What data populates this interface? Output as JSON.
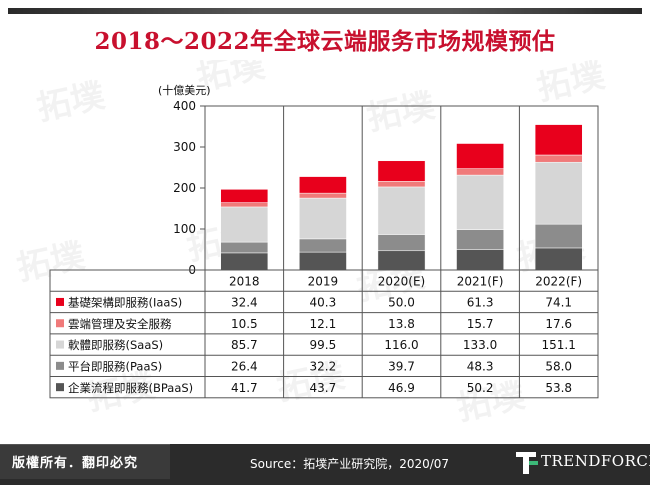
{
  "title": "2018～2022年全球云端服务市场规模预估",
  "footer": {
    "rights": "版權所有．翻印必究",
    "source": "Source：拓墣产业研究院，2020/07",
    "logo_text": "TRENDFORCE"
  },
  "watermark_text": "拓墣",
  "chart_data": {
    "type": "bar",
    "stacked": true,
    "unit_label": "(十億美元)",
    "ylim": [
      0,
      400
    ],
    "yticks": [
      0,
      100,
      200,
      300,
      400
    ],
    "categories": [
      "2018",
      "2019",
      "2020(E)",
      "2021(F)",
      "2022(F)"
    ],
    "series": [
      {
        "name": "基礎架構即服務(IaaS)",
        "color": "#e8001c",
        "values": [
          32.4,
          40.3,
          50.0,
          61.3,
          74.1
        ]
      },
      {
        "name": "雲端管理及安全服務",
        "color": "#f07a7a",
        "values": [
          10.5,
          12.1,
          13.8,
          15.7,
          17.6
        ]
      },
      {
        "name": "軟體即服務(SaaS)",
        "color": "#d6d6d6",
        "values": [
          85.7,
          99.5,
          116.0,
          133.0,
          151.1
        ]
      },
      {
        "name": "平台即服務(PaaS)",
        "color": "#8c8c8c",
        "values": [
          26.4,
          32.2,
          39.7,
          48.3,
          58.0
        ]
      },
      {
        "name": "企業流程即服務(BPaaS)",
        "color": "#555555",
        "values": [
          41.7,
          43.7,
          46.9,
          50.2,
          53.8
        ]
      }
    ],
    "table_values": [
      [
        "32.4",
        "40.3",
        "50.0",
        "61.3",
        "74.1"
      ],
      [
        "10.5",
        "12.1",
        "13.8",
        "15.7",
        "17.6"
      ],
      [
        "85.7",
        "99.5",
        "116.0",
        "133.0",
        "151.1"
      ],
      [
        "26.4",
        "32.2",
        "39.7",
        "48.3",
        "58.0"
      ],
      [
        "41.7",
        "43.7",
        "46.9",
        "50.2",
        "53.8"
      ]
    ],
    "grid": false,
    "legend": "table-left"
  }
}
